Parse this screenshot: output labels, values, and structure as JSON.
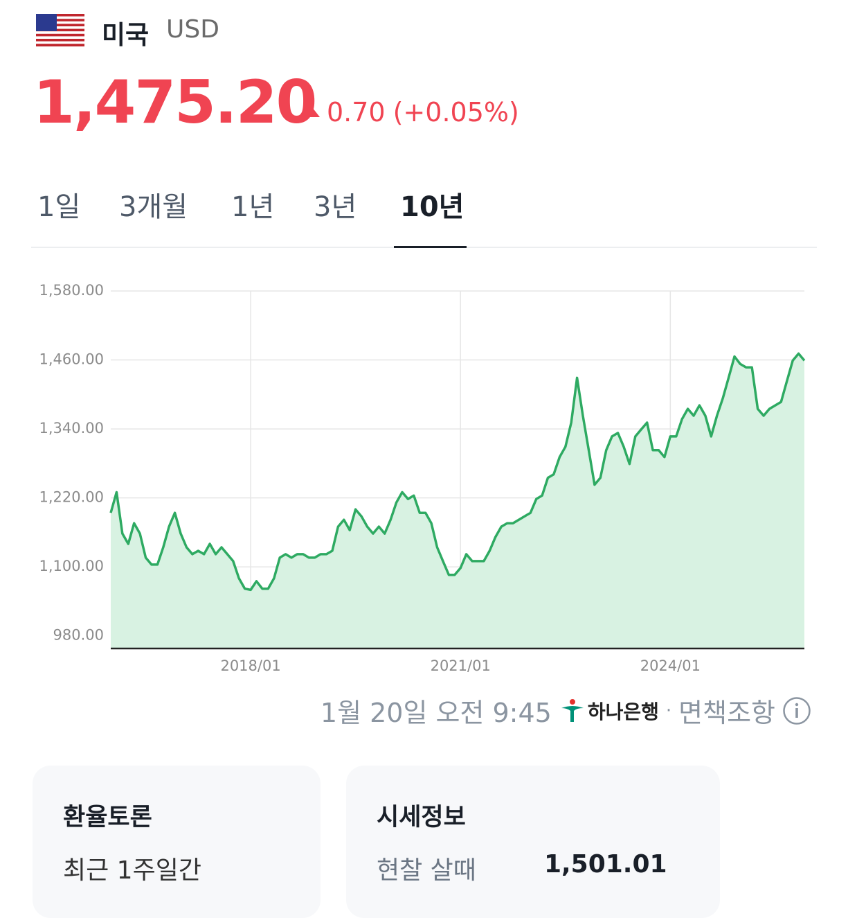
{
  "header": {
    "country": "미국",
    "currency": "USD"
  },
  "quote": {
    "price": "1,475.20",
    "change": "0.70",
    "change_percent": "(+0.05%)"
  },
  "tabs": [
    "1일",
    "3개월",
    "1년",
    "3년",
    "10년"
  ],
  "chart_data": {
    "type": "area",
    "x": [
      "2016/01",
      "2016/02",
      "2016/03",
      "2016/04",
      "2016/05",
      "2016/06",
      "2016/07",
      "2016/08",
      "2016/09",
      "2016/10",
      "2016/11",
      "2016/12",
      "2017/01",
      "2017/02",
      "2017/03",
      "2017/04",
      "2017/05",
      "2017/06",
      "2017/07",
      "2017/08",
      "2017/09",
      "2017/10",
      "2017/11",
      "2017/12",
      "2018/01",
      "2018/02",
      "2018/03",
      "2018/04",
      "2018/05",
      "2018/06",
      "2018/07",
      "2018/08",
      "2018/09",
      "2018/10",
      "2018/11",
      "2018/12",
      "2019/01",
      "2019/02",
      "2019/03",
      "2019/04",
      "2019/05",
      "2019/06",
      "2019/07",
      "2019/08",
      "2019/09",
      "2019/10",
      "2019/11",
      "2019/12",
      "2020/01",
      "2020/02",
      "2020/03",
      "2020/04",
      "2020/05",
      "2020/06",
      "2020/07",
      "2020/08",
      "2020/09",
      "2020/10",
      "2020/11",
      "2020/12",
      "2021/01",
      "2021/02",
      "2021/03",
      "2021/04",
      "2021/05",
      "2021/06",
      "2021/07",
      "2021/08",
      "2021/09",
      "2021/10",
      "2021/11",
      "2021/12",
      "2022/01",
      "2022/02",
      "2022/03",
      "2022/04",
      "2022/05",
      "2022/06",
      "2022/07",
      "2022/08",
      "2022/09",
      "2022/10",
      "2022/11",
      "2022/12",
      "2023/01",
      "2023/02",
      "2023/03",
      "2023/04",
      "2023/05",
      "2023/06",
      "2023/07",
      "2023/08",
      "2023/09",
      "2023/10",
      "2023/11",
      "2023/12",
      "2024/01",
      "2024/02",
      "2024/03",
      "2024/04",
      "2024/05",
      "2024/06",
      "2024/07",
      "2024/08",
      "2024/09",
      "2024/10",
      "2024/11",
      "2024/12",
      "2025/01",
      "2025/02",
      "2025/03",
      "2025/04",
      "2025/05",
      "2025/06",
      "2025/07",
      "2025/08",
      "2025/09",
      "2025/10",
      "2025/11",
      "2025/12"
    ],
    "values": [
      1194,
      1230,
      1158,
      1140,
      1176,
      1158,
      1116,
      1104,
      1104,
      1134,
      1170,
      1194,
      1158,
      1134,
      1122,
      1128,
      1122,
      1140,
      1122,
      1134,
      1122,
      1110,
      1080,
      1062,
      1060,
      1075,
      1062,
      1062,
      1080,
      1116,
      1122,
      1116,
      1122,
      1122,
      1116,
      1116,
      1122,
      1122,
      1128,
      1170,
      1182,
      1164,
      1200,
      1188,
      1170,
      1158,
      1170,
      1158,
      1182,
      1212,
      1230,
      1218,
      1224,
      1194,
      1194,
      1176,
      1134,
      1110,
      1086,
      1086,
      1098,
      1122,
      1110,
      1110,
      1110,
      1128,
      1152,
      1170,
      1176,
      1176,
      1182,
      1188,
      1194,
      1218,
      1224,
      1255,
      1261,
      1291,
      1309,
      1351,
      1429,
      1363,
      1303,
      1243,
      1255,
      1303,
      1327,
      1333,
      1309,
      1279,
      1327,
      1339,
      1351,
      1303,
      1303,
      1291,
      1327,
      1327,
      1357,
      1375,
      1363,
      1381,
      1363,
      1327,
      1363,
      1393,
      1429,
      1466,
      1453,
      1447,
      1447,
      1375,
      1363,
      1375,
      1381,
      1387,
      1423,
      1459,
      1471,
      1459
    ],
    "color": "#2eaa62",
    "fill": "#d8f2e2",
    "ylim": [
      958,
      1580
    ],
    "yticks": [
      {
        "value": 980,
        "label": "980.00"
      },
      {
        "value": 1100,
        "label": "1,100.00"
      },
      {
        "value": 1220,
        "label": "1,220.00"
      },
      {
        "value": 1340,
        "label": "1,340.00"
      },
      {
        "value": 1460,
        "label": "1,460.00"
      },
      {
        "value": 1580,
        "label": "1,580.00"
      }
    ],
    "xticks": [
      "2018/01",
      "2021/01",
      "2024/01"
    ],
    "grid": true
  },
  "footer": {
    "timestamp": "1월 20일 오전 9:45",
    "bank": "하나은행",
    "separator": "·",
    "disclaimer": "면책조항"
  },
  "cards": [
    {
      "title": "환율토론",
      "label": "최근 1주일간"
    },
    {
      "title": "시세정보",
      "label": "현찰 살때",
      "value": "1,501.01"
    }
  ]
}
